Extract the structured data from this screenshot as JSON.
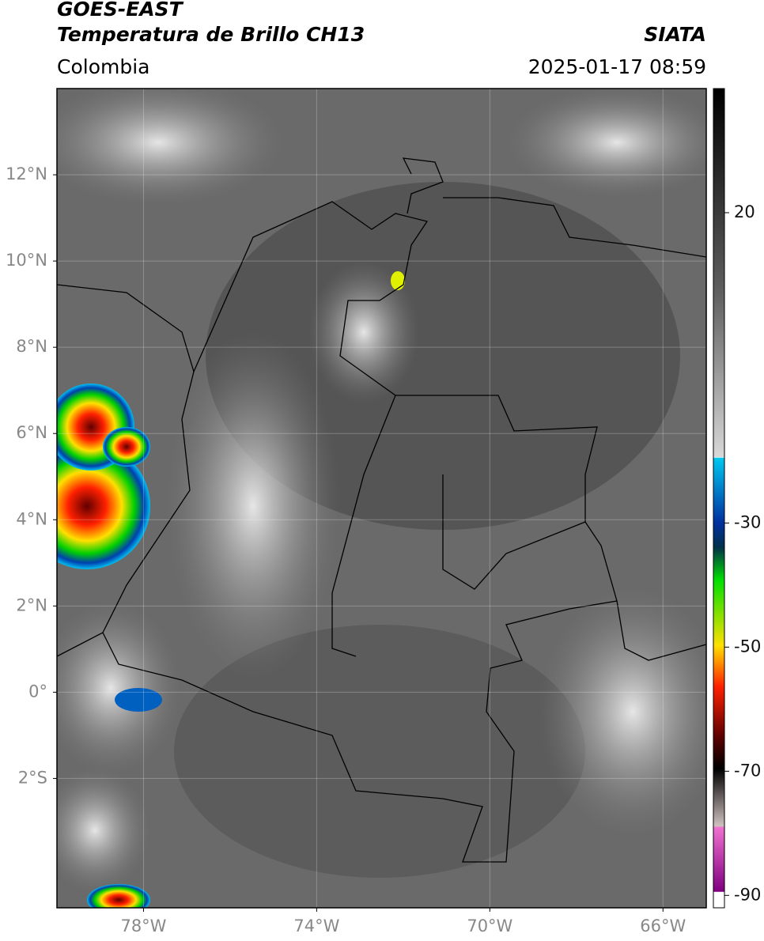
{
  "header": {
    "title_line1": "GOES-EAST",
    "title_line2": "Temperatura de Brillo CH13",
    "region": "Colombia",
    "source": "SIATA",
    "datetime": "2025-01-17 08:59"
  },
  "map": {
    "lonlim": [
      -80,
      -65
    ],
    "latlim": [
      -5,
      14
    ],
    "lonticks": [
      {
        "value": -78,
        "label": "78°W"
      },
      {
        "value": -74,
        "label": "74°W"
      },
      {
        "value": -70,
        "label": "70°W"
      },
      {
        "value": -66,
        "label": "66°W"
      }
    ],
    "latticks": [
      {
        "value": 12,
        "label": "12°N"
      },
      {
        "value": 10,
        "label": "10°N"
      },
      {
        "value": 8,
        "label": "8°N"
      },
      {
        "value": 6,
        "label": "6°N"
      },
      {
        "value": 4,
        "label": "4°N"
      },
      {
        "value": 2,
        "label": "2°N"
      },
      {
        "value": 0,
        "label": "0°"
      },
      {
        "value": -2,
        "label": "2°S"
      }
    ]
  },
  "colorbar": {
    "lim": [
      -92,
      40
    ],
    "ticks": [
      20,
      -30,
      -50,
      -70,
      -90
    ]
  }
}
